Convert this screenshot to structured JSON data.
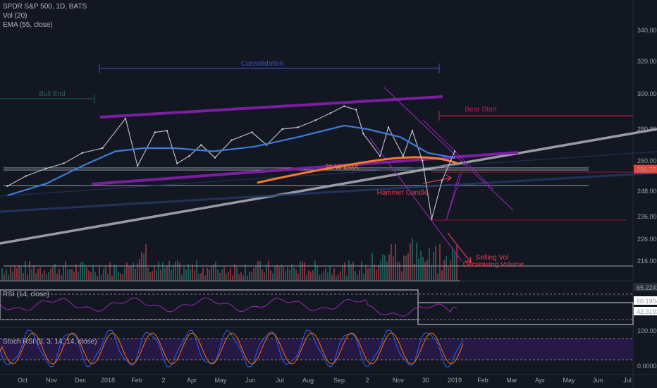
{
  "header": {
    "symbol_line": "SPDR S&P 500, 1D, BATS",
    "vol_line": "Vol (20)",
    "ema_line": "EMA (55, close)"
  },
  "panes": {
    "rsi_label": "RSI (14, close)",
    "stoch_label": "Stoch RSI (3, 3, 14, 14, close)"
  },
  "chart_data": {
    "type": "line",
    "title": "SPDR S&P 500, 1D, BATS",
    "price_axis": {
      "ticks": [
        340.0,
        320.0,
        300.0,
        280.0,
        260.0,
        248.0,
        236.0,
        226.0,
        216.0
      ],
      "tick_labels": [
        "340.00",
        "320.00",
        "300.00",
        "280.00",
        "260.00",
        "248.00",
        "236.00",
        "226.00",
        "216.00"
      ],
      "last_price_label": "256.77",
      "last_price": 256.77,
      "log_scale": true
    },
    "x_axis": {
      "tick_labels": [
        "Oct",
        "Nov",
        "Dec",
        "2018",
        "Feb",
        "2",
        "Apr",
        "May",
        "Jun",
        "Jul",
        "Aug",
        "Sep",
        "2",
        "Nov",
        "30",
        "2019",
        "Feb",
        "Mar",
        "Apr",
        "May",
        "Jun",
        "Jul"
      ]
    },
    "price_series": {
      "name": "",
      "points": [
        [
          "2017-09-20",
          250
        ],
        [
          "2017-10-10",
          254
        ],
        [
          "2017-11-01",
          257
        ],
        [
          "2017-11-20",
          259
        ],
        [
          "2017-12-10",
          265
        ],
        [
          "2018-01-01",
          268
        ],
        [
          "2018-01-26",
          286
        ],
        [
          "2018-02-08",
          258
        ],
        [
          "2018-02-27",
          278
        ],
        [
          "2018-03-12",
          279
        ],
        [
          "2018-03-23",
          259
        ],
        [
          "2018-04-05",
          263
        ],
        [
          "2018-04-18",
          270
        ],
        [
          "2018-05-03",
          262
        ],
        [
          "2018-05-21",
          273
        ],
        [
          "2018-06-12",
          278
        ],
        [
          "2018-06-28",
          270
        ],
        [
          "2018-07-15",
          280
        ],
        [
          "2018-08-01",
          281
        ],
        [
          "2018-08-20",
          285
        ],
        [
          "2018-09-05",
          289
        ],
        [
          "2018-09-20",
          293
        ],
        [
          "2018-10-03",
          291
        ],
        [
          "2018-10-11",
          277
        ],
        [
          "2018-10-29",
          263
        ],
        [
          "2018-11-07",
          281
        ],
        [
          "2018-11-23",
          263
        ],
        [
          "2018-12-03",
          279
        ],
        [
          "2018-12-14",
          260
        ],
        [
          "2018-12-24",
          235
        ],
        [
          "2019-01-04",
          252
        ],
        [
          "2019-01-18",
          266
        ]
      ]
    },
    "ema_series": {
      "name": "",
      "points": [
        [
          "2017-09-20",
          246
        ],
        [
          "2017-11-01",
          251
        ],
        [
          "2017-12-10",
          258
        ],
        [
          "2018-01-15",
          266
        ],
        [
          "2018-02-15",
          268
        ],
        [
          "2018-03-20",
          268
        ],
        [
          "2018-05-01",
          266
        ],
        [
          "2018-06-15",
          269
        ],
        [
          "2018-08-01",
          275
        ],
        [
          "2018-09-20",
          282
        ],
        [
          "2018-10-15",
          280
        ],
        [
          "2018-11-20",
          275
        ],
        [
          "2018-12-20",
          265
        ],
        [
          "2019-01-18",
          262
        ]
      ]
    },
    "rsi_axis": {
      "tick_labels": [
        "65.2241",
        "60.1904",
        "42.3193"
      ],
      "values": [
        65.2241,
        60.1904,
        42.3193
      ]
    },
    "stoch_axis": {
      "tick_labels": [
        "100.0000",
        "0.0000"
      ],
      "values": [
        100,
        0
      ]
    },
    "annotations": {
      "consolidation": "Consolidation",
      "bull_end": "Bull End",
      "bear_start": "Bear Start",
      "ema_label": "21 W EMA",
      "hammer": "Hammer Candle",
      "vol_note_1": "Selling Vol",
      "vol_note_2": "Decreasing Volume"
    }
  },
  "colors": {
    "background": "#131722",
    "up": "#26a69a",
    "down": "#ef5350",
    "ema": "#3d7bd9",
    "channel_purple": "#7b1fa2",
    "trend_gray": "#b0b3b8",
    "weekly_ema_orange": "#f57c2a",
    "bear_red": "#b71c3c",
    "last_price_bg": "#e5473c"
  }
}
